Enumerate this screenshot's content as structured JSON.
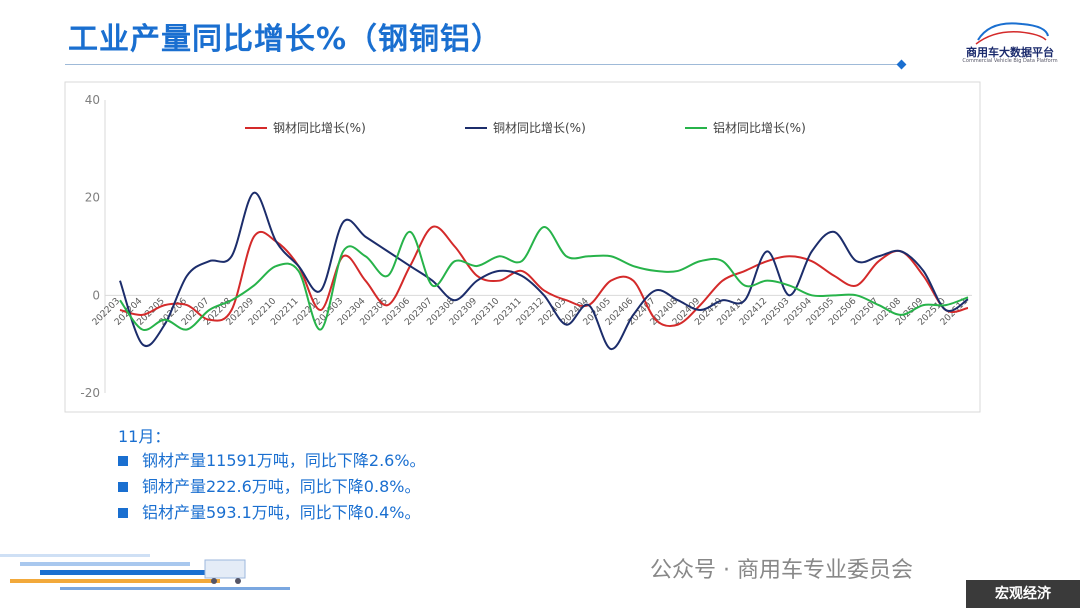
{
  "page": {
    "title": "工业产量同比增长%（钢铜铝）",
    "logo_name": "商用车大数据平台",
    "logo_sub": "Commercial Vehicle Big Data Platform",
    "logo_mark": "V3D",
    "notes_heading": "11月：",
    "notes": [
      "钢材产量11591万吨，同比下降2.6%。",
      "铜材产量222.6万吨，同比下降0.8%。",
      "铝材产量593.1万吨，同比下降0.4%。"
    ],
    "footer_text": "公众号 · 商用车专业委员会",
    "badge_text": "宏观经济",
    "accent_color": "#1a6fd0"
  },
  "chart_data": {
    "type": "line",
    "ylim": [
      -20,
      40
    ],
    "yticks": [
      -20,
      0,
      20,
      40
    ],
    "legend_position": "top",
    "grid": false,
    "x": [
      "202203",
      "202204",
      "202205",
      "202206",
      "202207",
      "202208",
      "202209",
      "202210",
      "202211",
      "202212",
      "202303",
      "202304",
      "202305",
      "202306",
      "202307",
      "202308",
      "202309",
      "202310",
      "202311",
      "202312",
      "202403",
      "202404",
      "202405",
      "202406",
      "202407",
      "202408",
      "202409",
      "202410",
      "202411",
      "202412",
      "202503",
      "202504",
      "202505",
      "202506",
      "202507",
      "202508",
      "202509",
      "202510",
      "202511"
    ],
    "series": [
      {
        "name": "钢材同比增长(%)",
        "color": "#d42a2a",
        "values": [
          -3,
          -4,
          -2,
          -2,
          -5,
          -3,
          12,
          11,
          6,
          -3,
          8,
          3,
          -2,
          6,
          14,
          10,
          4,
          3,
          5,
          1,
          -1,
          -2,
          3,
          3,
          -5,
          -6,
          -2,
          3,
          5,
          7,
          8,
          7,
          4,
          2,
          7,
          9,
          4,
          -3,
          -2.6
        ]
      },
      {
        "name": "铜材同比增长(%)",
        "color": "#1c2d6b",
        "values": [
          3,
          -10,
          -6,
          4,
          7,
          8,
          21,
          11,
          6,
          1,
          15,
          12,
          9,
          6,
          3,
          -1,
          3,
          5,
          4,
          0,
          -6,
          -2,
          -11,
          -4,
          1,
          -1,
          -3,
          -1,
          -1,
          9,
          0,
          9,
          13,
          7,
          8,
          9,
          5,
          -3,
          -0.8
        ]
      },
      {
        "name": "铝材同比增长(%)",
        "color": "#27b34a",
        "values": [
          -1,
          -7,
          -5,
          -7,
          -3,
          -1,
          2,
          6,
          5,
          -7,
          9,
          8,
          4,
          13,
          2,
          7,
          6,
          8,
          7,
          14,
          8,
          8,
          8,
          6,
          5,
          5,
          7,
          7,
          2,
          3,
          2,
          0,
          0,
          0,
          -2,
          -4,
          -2,
          -2,
          -0.4
        ]
      }
    ]
  }
}
